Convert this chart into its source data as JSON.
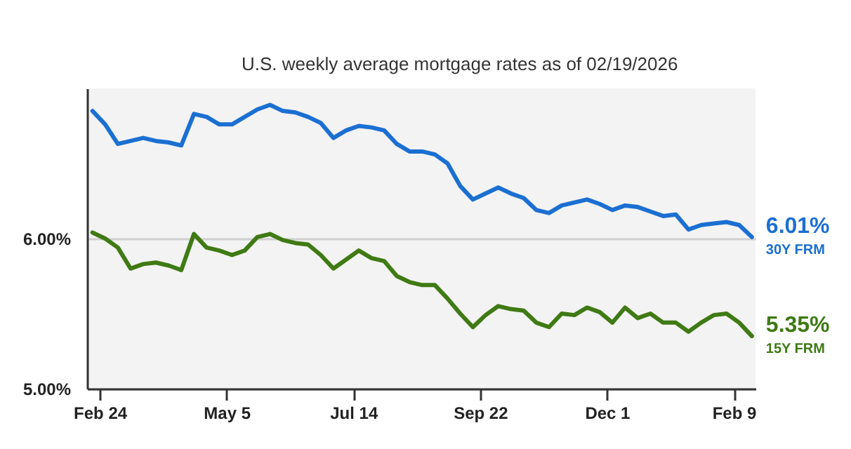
{
  "chart_data": {
    "type": "line",
    "subtitle": "U.S. weekly average mortgage rates as of 02/19/2026",
    "x": [
      "2025-02-20",
      "2025-02-27",
      "2025-03-06",
      "2025-03-13",
      "2025-03-20",
      "2025-03-27",
      "2025-04-03",
      "2025-04-10",
      "2025-04-17",
      "2025-04-24",
      "2025-05-01",
      "2025-05-08",
      "2025-05-15",
      "2025-05-22",
      "2025-05-29",
      "2025-06-05",
      "2025-06-12",
      "2025-06-19",
      "2025-06-26",
      "2025-07-03",
      "2025-07-10",
      "2025-07-17",
      "2025-07-24",
      "2025-07-31",
      "2025-08-07",
      "2025-08-14",
      "2025-08-21",
      "2025-08-28",
      "2025-09-04",
      "2025-09-11",
      "2025-09-18",
      "2025-09-25",
      "2025-10-02",
      "2025-10-09",
      "2025-10-16",
      "2025-10-23",
      "2025-10-30",
      "2025-11-06",
      "2025-11-13",
      "2025-11-20",
      "2025-11-27",
      "2025-12-04",
      "2025-12-11",
      "2025-12-18",
      "2025-12-25",
      "2026-01-01",
      "2026-01-08",
      "2026-01-15",
      "2026-01-22",
      "2026-01-29",
      "2026-02-05",
      "2026-02-12",
      "2026-02-19"
    ],
    "series": [
      {
        "name": "30Y FRM",
        "color": "#1b6fd2",
        "values": [
          6.85,
          6.76,
          6.63,
          6.65,
          6.67,
          6.65,
          6.64,
          6.62,
          6.83,
          6.81,
          6.76,
          6.76,
          6.81,
          6.86,
          6.89,
          6.85,
          6.84,
          6.81,
          6.77,
          6.67,
          6.72,
          6.75,
          6.74,
          6.72,
          6.63,
          6.58,
          6.58,
          6.56,
          6.5,
          6.35,
          6.26,
          6.3,
          6.34,
          6.3,
          6.27,
          6.19,
          6.17,
          6.22,
          6.24,
          6.26,
          6.23,
          6.19,
          6.22,
          6.21,
          6.18,
          6.15,
          6.16,
          6.06,
          6.09,
          6.1,
          6.11,
          6.09,
          6.01
        ],
        "value_labels": [
          null,
          null,
          null,
          null,
          null,
          null,
          null,
          null,
          null,
          null,
          null,
          null,
          null,
          null,
          null,
          null,
          null,
          null,
          null,
          null,
          null,
          null,
          null,
          null,
          null,
          null,
          null,
          null,
          null,
          null,
          null,
          null,
          null,
          null,
          null,
          null,
          null,
          null,
          null,
          null,
          null,
          null,
          null,
          null,
          null,
          null,
          null,
          null,
          null,
          null,
          null,
          null,
          "6.01%"
        ]
      },
      {
        "name": "15Y FRM",
        "color": "#3f7a14",
        "values": [
          6.04,
          6.0,
          5.94,
          5.8,
          5.83,
          5.84,
          5.82,
          5.79,
          6.03,
          5.94,
          5.92,
          5.89,
          5.92,
          6.01,
          6.03,
          5.99,
          5.97,
          5.96,
          5.89,
          5.8,
          5.86,
          5.92,
          5.87,
          5.85,
          5.75,
          5.71,
          5.69,
          5.69,
          5.6,
          5.5,
          5.41,
          5.49,
          5.55,
          5.53,
          5.52,
          5.44,
          5.41,
          5.5,
          5.49,
          5.54,
          5.51,
          5.44,
          5.54,
          5.47,
          5.5,
          5.44,
          5.44,
          5.38,
          5.44,
          5.49,
          5.5,
          5.44,
          5.35
        ],
        "value_labels": [
          null,
          null,
          null,
          null,
          null,
          null,
          null,
          null,
          null,
          null,
          null,
          null,
          null,
          null,
          null,
          null,
          null,
          null,
          null,
          null,
          null,
          null,
          null,
          null,
          null,
          null,
          null,
          null,
          null,
          null,
          null,
          null,
          null,
          null,
          null,
          null,
          null,
          null,
          null,
          null,
          null,
          null,
          null,
          null,
          null,
          null,
          null,
          null,
          null,
          null,
          null,
          null,
          "5.35%"
        ]
      }
    ],
    "xlim": [
      "2025-02-17",
      "2026-02-21"
    ],
    "xticks": [
      {
        "value": "2025-02-24",
        "label": "Feb 24"
      },
      {
        "value": "2025-05-05",
        "label": "May 5"
      },
      {
        "value": "2025-07-14",
        "label": "Jul 14"
      },
      {
        "value": "2025-09-22",
        "label": "Sep 22"
      },
      {
        "value": "2025-12-01",
        "label": "Dec 1"
      },
      {
        "value": "2026-02-09",
        "label": "Feb 9"
      }
    ],
    "ylim": [
      5,
      7
    ],
    "yticks": [
      {
        "value": 5,
        "label": "5.00%"
      },
      {
        "value": 6,
        "label": "6.00%"
      }
    ],
    "grid": "y",
    "legend": false,
    "marker": "none",
    "line_style": "solid"
  }
}
